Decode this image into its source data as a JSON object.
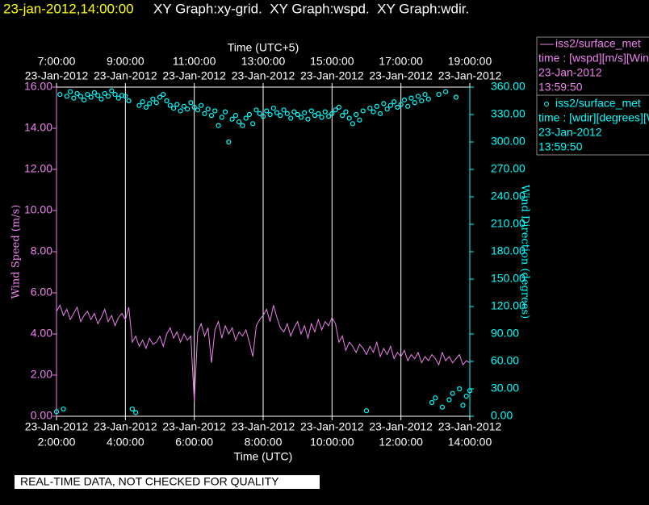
{
  "chart_data": {
    "type": "line",
    "timestamp": "23-jan-2012,14:00:00",
    "title": "XY Graph:xy-grid.  XY Graph:wspd.  XY Graph:wdir.",
    "xlabel": "Time (UTC)",
    "x2label": "Time (UTC+5)",
    "ylabel": "Wind Speed (m/s)",
    "y2label": "Wind Direction (degrees)",
    "footer": "REAL-TIME DATA, NOT CHECKED FOR QUALITY",
    "grid": true,
    "xlim": [
      2,
      14
    ],
    "xticks": [
      {
        "value": 2,
        "label": "2:00:00",
        "date": "23-Jan-2012"
      },
      {
        "value": 4,
        "label": "4:00:00",
        "date": "23-Jan-2012"
      },
      {
        "value": 6,
        "label": "6:00:00",
        "date": "23-Jan-2012"
      },
      {
        "value": 8,
        "label": "8:00:00",
        "date": "23-Jan-2012"
      },
      {
        "value": 10,
        "label": "10:00:00",
        "date": "23-Jan-2012"
      },
      {
        "value": 12,
        "label": "12:00:00",
        "date": "23-Jan-2012"
      },
      {
        "value": 14,
        "label": "14:00:00",
        "date": "23-Jan-2012"
      }
    ],
    "x2ticks": [
      {
        "value": 2,
        "label": "7:00:00",
        "date": "23-Jan-2012"
      },
      {
        "value": 4,
        "label": "9:00:00",
        "date": "23-Jan-2012"
      },
      {
        "value": 6,
        "label": "11:00:00",
        "date": "23-Jan-2012"
      },
      {
        "value": 8,
        "label": "13:00:00",
        "date": "23-Jan-2012"
      },
      {
        "value": 10,
        "label": "15:00:00",
        "date": "23-Jan-2012"
      },
      {
        "value": 12,
        "label": "17:00:00",
        "date": "23-Jan-2012"
      },
      {
        "value": 14,
        "label": "19:00:00",
        "date": "23-Jan-2012"
      }
    ],
    "ylim": [
      0,
      16
    ],
    "yticks": [
      {
        "value": 0,
        "label": "0.00"
      },
      {
        "value": 2,
        "label": "2.00"
      },
      {
        "value": 4,
        "label": "4.00"
      },
      {
        "value": 6,
        "label": "6.00"
      },
      {
        "value": 8,
        "label": "8.00"
      },
      {
        "value": 10,
        "label": "10.00"
      },
      {
        "value": 12,
        "label": "12.00"
      },
      {
        "value": 14,
        "label": "14.00"
      },
      {
        "value": 16,
        "label": "16.00"
      }
    ],
    "y2lim": [
      0,
      360
    ],
    "y2ticks": [
      {
        "value": 0,
        "label": "0.00"
      },
      {
        "value": 30,
        "label": "30.00"
      },
      {
        "value": 60,
        "label": "60.00"
      },
      {
        "value": 90,
        "label": "90.00"
      },
      {
        "value": 120,
        "label": "120.00"
      },
      {
        "value": 150,
        "label": "150.00"
      },
      {
        "value": 180,
        "label": "180.00"
      },
      {
        "value": 210,
        "label": "210.00"
      },
      {
        "value": 240,
        "label": "240.00"
      },
      {
        "value": 270,
        "label": "270.00"
      },
      {
        "value": 300,
        "label": "300.00"
      },
      {
        "value": 330,
        "label": "330.00"
      },
      {
        "value": 360,
        "label": "360.00"
      }
    ],
    "x": [
      2.0,
      2.1,
      2.2,
      2.3,
      2.4,
      2.5,
      2.6,
      2.7,
      2.8,
      2.9,
      3.0,
      3.1,
      3.2,
      3.3,
      3.4,
      3.5,
      3.6,
      3.7,
      3.8,
      3.9,
      4.0,
      4.1,
      4.2,
      4.3,
      4.4,
      4.5,
      4.6,
      4.7,
      4.8,
      4.9,
      5.0,
      5.1,
      5.2,
      5.3,
      5.4,
      5.5,
      5.6,
      5.7,
      5.8,
      5.9,
      6.0,
      6.1,
      6.2,
      6.3,
      6.4,
      6.5,
      6.6,
      6.7,
      6.8,
      6.9,
      7.0,
      7.1,
      7.2,
      7.3,
      7.4,
      7.5,
      7.6,
      7.7,
      7.8,
      7.9,
      8.0,
      8.1,
      8.2,
      8.3,
      8.4,
      8.5,
      8.6,
      8.7,
      8.8,
      8.9,
      9.0,
      9.1,
      9.2,
      9.3,
      9.4,
      9.5,
      9.6,
      9.7,
      9.8,
      9.9,
      10.0,
      10.1,
      10.2,
      10.3,
      10.4,
      10.5,
      10.6,
      10.7,
      10.8,
      10.9,
      11.0,
      11.1,
      11.2,
      11.3,
      11.4,
      11.5,
      11.6,
      11.7,
      11.8,
      11.9,
      12.0,
      12.1,
      12.2,
      12.3,
      12.4,
      12.5,
      12.6,
      12.7,
      12.8,
      12.9,
      13.0,
      13.1,
      13.2,
      13.3,
      13.4,
      13.5,
      13.6,
      13.7,
      13.8,
      13.9,
      14.0
    ],
    "series": [
      {
        "name": "iss2/surface_met",
        "type": "line",
        "color": "#ee82ee",
        "legend_info": [
          "time : [wspd][m/s][Wind",
          "23-Jan-2012",
          "13:59:50"
        ],
        "values": [
          5.1,
          5.4,
          4.9,
          5.2,
          4.7,
          5.0,
          5.3,
          4.6,
          4.9,
          5.1,
          4.7,
          5.0,
          4.5,
          4.8,
          5.2,
          4.6,
          4.9,
          4.4,
          4.8,
          5.0,
          4.7,
          5.3,
          3.6,
          3.9,
          3.4,
          3.7,
          3.3,
          3.8,
          3.5,
          3.6,
          3.9,
          3.4,
          4.0,
          4.3,
          3.8,
          4.1,
          3.6,
          4.0,
          3.7,
          3.9,
          0.7,
          4.1,
          4.5,
          3.9,
          4.3,
          2.6,
          4.2,
          4.6,
          3.8,
          4.4,
          4.0,
          4.3,
          3.7,
          4.1,
          3.9,
          4.2,
          3.6,
          2.9,
          4.4,
          4.7,
          4.9,
          5.2,
          4.6,
          5.4,
          4.8,
          4.3,
          4.1,
          4.5,
          3.9,
          4.3,
          4.6,
          4.0,
          4.4,
          3.8,
          4.5,
          4.1,
          4.7,
          4.2,
          4.6,
          4.4,
          4.8,
          4.5,
          3.6,
          3.9,
          3.2,
          3.6,
          3.4,
          3.1,
          3.5,
          3.3,
          3.0,
          3.4,
          3.1,
          3.6,
          2.9,
          3.3,
          3.0,
          3.4,
          2.8,
          3.1,
          2.9,
          3.2,
          2.7,
          3.0,
          2.8,
          3.1,
          2.6,
          2.9,
          2.7,
          3.0,
          2.8,
          2.5,
          3.1,
          2.7,
          2.9,
          2.6,
          2.8,
          3.0,
          2.5,
          2.7,
          2.6
        ]
      },
      {
        "name": "iss2/surface_met",
        "type": "scatter",
        "axis": "y2",
        "color": "#00ffff",
        "legend_info": [
          "time : [wdir][degrees][W",
          "23-Jan-2012",
          "13:59:50"
        ],
        "values": [
          5,
          352,
          8,
          350,
          355,
          348,
          353,
          350,
          346,
          352,
          349,
          354,
          351,
          347,
          353,
          350,
          356,
          352,
          348,
          351,
          350,
          345,
          8,
          4,
          340,
          344,
          338,
          342,
          347,
          343,
          349,
          352,
          345,
          340,
          337,
          341,
          334,
          339,
          336,
          343,
          338,
          335,
          340,
          331,
          336,
          329,
          334,
          318,
          327,
          333,
          300,
          325,
          329,
          322,
          318,
          326,
          330,
          320,
          335,
          331,
          328,
          334,
          330,
          337,
          332,
          329,
          335,
          331,
          326,
          333,
          330,
          327,
          332,
          325,
          334,
          329,
          331,
          327,
          333,
          328,
          331,
          335,
          338,
          329,
          333,
          326,
          320,
          330,
          324,
          334,
          6,
          337,
          333,
          339,
          331,
          342,
          336,
          340,
          344,
          338,
          341,
          346,
          339,
          348,
          343,
          350,
          345,
          352,
          347,
          15,
          20,
          352,
          10,
          355,
          18,
          25,
          349,
          30,
          12,
          22,
          28
        ]
      }
    ]
  }
}
